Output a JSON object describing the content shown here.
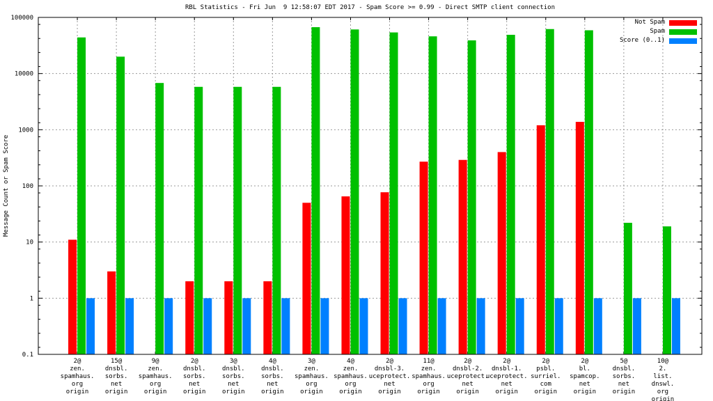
{
  "title": "RBL Statistics - Fri Jun  9 12:58:07 EDT 2017 - Spam Score >= 0.99 - Direct SMTP client connection",
  "y_axis": {
    "title": "Message Count or Spam Score"
  },
  "legend": [
    {
      "label": "Not Spam",
      "color": "#ff0000"
    },
    {
      "label": "Spam",
      "color": "#00c000"
    },
    {
      "label": "Score (0..1)",
      "color": "#0080ff"
    }
  ],
  "chart_data": {
    "type": "bar",
    "y_scale": "log",
    "ylim": [
      0.1,
      100000
    ],
    "y_ticks": [
      "0.1",
      "1",
      "10",
      "100",
      "1000",
      "10000",
      "100000"
    ],
    "grid": true,
    "legend_position": "top-right",
    "background": "#ffffff",
    "categories": [
      [
        "2@",
        "zen.",
        "spamhaus.",
        "org",
        "origin"
      ],
      [
        "15@",
        "dnsbl.",
        "sorbs.",
        "net",
        "origin"
      ],
      [
        "9@",
        "zen.",
        "spamhaus.",
        "org",
        "origin"
      ],
      [
        "2@",
        "dnsbl.",
        "sorbs.",
        "net",
        "origin"
      ],
      [
        "3@",
        "dnsbl.",
        "sorbs.",
        "net",
        "origin"
      ],
      [
        "4@",
        "dnsbl.",
        "sorbs.",
        "net",
        "origin"
      ],
      [
        "3@",
        "zen.",
        "spamhaus.",
        "org",
        "origin"
      ],
      [
        "4@",
        "zen.",
        "spamhaus.",
        "org",
        "origin"
      ],
      [
        "2@",
        "dnsbl-3.",
        "uceprotect.",
        "net",
        "origin"
      ],
      [
        "11@",
        "zen.",
        "spamhaus.",
        "org",
        "origin"
      ],
      [
        "2@",
        "dnsbl-2.",
        "uceprotect.",
        "net",
        "origin"
      ],
      [
        "2@",
        "dnsbl-1.",
        "uceprotect.",
        "net",
        "origin"
      ],
      [
        "2@",
        "psbl.",
        "surriel.",
        "com",
        "origin"
      ],
      [
        "2@",
        "bl.",
        "spamcop.",
        "net",
        "origin"
      ],
      [
        "5@",
        "dnsbl.",
        "sorbs.",
        "net",
        "origin"
      ],
      [
        "10@",
        "2.",
        "list.",
        "dnswl.",
        "org",
        "origin"
      ]
    ],
    "series": [
      {
        "name": "Not Spam",
        "color": "#ff0000",
        "values": [
          11,
          3,
          null,
          2,
          2,
          2,
          50,
          65,
          77,
          270,
          290,
          400,
          1200,
          1380,
          null,
          null
        ]
      },
      {
        "name": "Spam",
        "color": "#00c000",
        "values": [
          44000,
          20000,
          6800,
          5800,
          5800,
          5800,
          67000,
          61000,
          54000,
          46000,
          39000,
          49000,
          62000,
          59000,
          22,
          19
        ]
      },
      {
        "name": "Score (0..1)",
        "color": "#0080ff",
        "values": [
          1,
          1,
          1,
          1,
          1,
          1,
          1,
          1,
          1,
          1,
          1,
          1,
          1,
          1,
          1,
          1
        ]
      }
    ]
  }
}
